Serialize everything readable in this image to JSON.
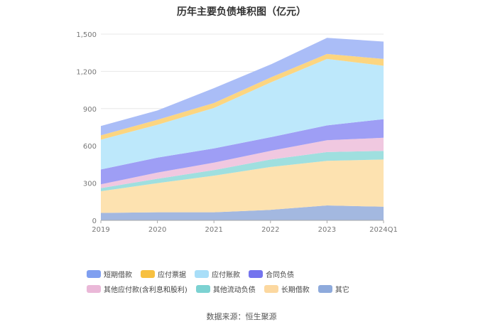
{
  "header": {
    "title": "历年主要负债堆积图（亿元）"
  },
  "footer": {
    "source": "数据来源：恒生聚源"
  },
  "chart_data": {
    "type": "area",
    "stacked": true,
    "title": "历年主要负债堆积图（亿元）",
    "categories": [
      "2019",
      "2020",
      "2021",
      "2022",
      "2023",
      "2024Q1"
    ],
    "y_ticks": [
      "0",
      "300",
      "600",
      "900",
      "1,200",
      "1,500"
    ],
    "ylim": [
      0,
      1500
    ],
    "grid": true,
    "legend_position": "bottom",
    "series": [
      {
        "name": "其它",
        "color": "#a3b8e0",
        "values": [
          60,
          65,
          65,
          85,
          120,
          110
        ]
      },
      {
        "name": "长期借款",
        "color": "#fde2b0",
        "values": [
          175,
          235,
          295,
          345,
          360,
          380
        ]
      },
      {
        "name": "其他流动负债",
        "color": "#9fdfdf",
        "values": [
          25,
          35,
          45,
          60,
          70,
          70
        ]
      },
      {
        "name": "其他应付款(含利息和股利)",
        "color": "#f0c8e0",
        "values": [
          30,
          50,
          60,
          70,
          95,
          105
        ]
      },
      {
        "name": "合同负债",
        "color": "#9e9ef5",
        "values": [
          120,
          120,
          115,
          110,
          120,
          150
        ]
      },
      {
        "name": "应付账款",
        "color": "#bde8fb",
        "values": [
          240,
          265,
          325,
          440,
          535,
          430
        ]
      },
      {
        "name": "应付票据",
        "color": "#fcd580",
        "values": [
          35,
          40,
          40,
          40,
          40,
          55
        ]
      },
      {
        "name": "短期借款",
        "color": "#aabdf7",
        "values": [
          75,
          75,
          120,
          105,
          130,
          140
        ]
      }
    ],
    "legend_order": [
      "短期借款",
      "应付票据",
      "应付账款",
      "合同负债",
      "其他应付款(含利息和股利)",
      "其他流动负债",
      "长期借款",
      "其它"
    ],
    "legend_colors": {
      "短期借款": "#7f9ff0",
      "应付票据": "#f7c040",
      "应付账款": "#a8def8",
      "合同负债": "#7474ee",
      "其他应付款(含利息和股利)": "#eab8d8",
      "其他流动负债": "#7cd2d2",
      "长期借款": "#fcd8a0",
      "其它": "#8eaadc"
    }
  }
}
